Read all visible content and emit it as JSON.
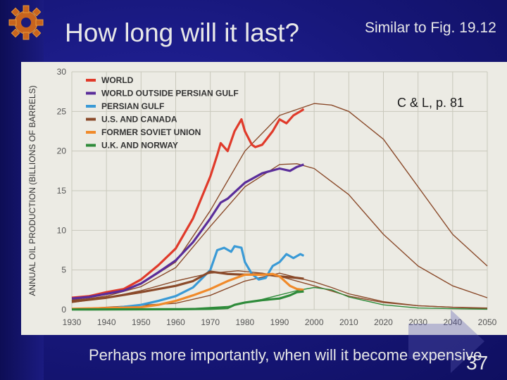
{
  "slide": {
    "title": "How long will it last?",
    "subtitle": "Similar to Fig. 19.12",
    "bottom_text": "Perhaps more importantly, when will it become expensive",
    "page_number": "37"
  },
  "chart_data": {
    "type": "line",
    "ylabel": "ANNUAL OIL PRODUCTION (BILLIONS OF BARRELS)",
    "xlim": [
      1930,
      2050
    ],
    "ylim": [
      0,
      30
    ],
    "x_ticks": [
      "1930",
      "1940",
      "1950",
      "1960",
      "1970",
      "1980",
      "1990",
      "2000",
      "2010",
      "2020",
      "2030",
      "2040",
      "2050"
    ],
    "y_ticks": [
      "0",
      "5",
      "10",
      "15",
      "20",
      "25",
      "30"
    ],
    "annotation": "C & L, p. 81",
    "grid": true,
    "legend_position": "top-left",
    "series": [
      {
        "name": "WORLD",
        "color": "#e03a2a",
        "x": [
          1930,
          1935,
          1940,
          1945,
          1950,
          1955,
          1960,
          1965,
          1970,
          1972,
          1973,
          1975,
          1977,
          1979,
          1980,
          1982,
          1983,
          1985,
          1988,
          1990,
          1992,
          1994,
          1996,
          1997
        ],
        "y": [
          1.5,
          1.7,
          2.2,
          2.6,
          3.8,
          5.6,
          7.7,
          11.5,
          16.8,
          19.5,
          21.0,
          20.0,
          22.5,
          24.0,
          22.5,
          20.8,
          20.5,
          20.8,
          22.5,
          24.0,
          23.5,
          24.5,
          25.0,
          25.3
        ]
      },
      {
        "name": "WORLD OUTSIDE PERSIAN GULF",
        "color": "#5a2d9a",
        "x": [
          1930,
          1935,
          1940,
          1945,
          1950,
          1955,
          1960,
          1965,
          1970,
          1973,
          1975,
          1980,
          1985,
          1990,
          1993,
          1995,
          1997
        ],
        "y": [
          1.4,
          1.6,
          2.0,
          2.4,
          3.3,
          4.7,
          6.2,
          8.5,
          11.5,
          13.5,
          14.0,
          16.0,
          17.2,
          17.8,
          17.5,
          18.0,
          18.3
        ]
      },
      {
        "name": "PERSIAN GULF",
        "color": "#3a9ad6",
        "x": [
          1930,
          1940,
          1950,
          1955,
          1960,
          1965,
          1970,
          1972,
          1974,
          1976,
          1977,
          1979,
          1980,
          1982,
          1984,
          1986,
          1988,
          1990,
          1992,
          1994,
          1996,
          1997
        ],
        "y": [
          0.05,
          0.1,
          0.6,
          1.1,
          1.7,
          2.8,
          5.0,
          7.5,
          7.8,
          7.3,
          8.0,
          7.8,
          6.0,
          4.5,
          3.8,
          4.0,
          5.5,
          6.0,
          7.0,
          6.5,
          7.0,
          6.8
        ]
      },
      {
        "name": "U.S. AND CANADA",
        "color": "#8a4a2a",
        "x": [
          1930,
          1940,
          1950,
          1960,
          1965,
          1970,
          1975,
          1980,
          1985,
          1990,
          1995,
          1997
        ],
        "y": [
          1.0,
          1.5,
          2.2,
          3.0,
          3.6,
          4.8,
          4.5,
          4.4,
          4.5,
          4.2,
          4.0,
          3.9
        ]
      },
      {
        "name": "FORMER SOVIET UNION",
        "color": "#f08a2a",
        "x": [
          1930,
          1940,
          1950,
          1955,
          1960,
          1965,
          1970,
          1975,
          1980,
          1985,
          1988,
          1990,
          1993,
          1995,
          1997
        ],
        "y": [
          0.1,
          0.2,
          0.3,
          0.6,
          1.1,
          1.8,
          2.6,
          3.6,
          4.4,
          4.4,
          4.5,
          4.2,
          3.0,
          2.6,
          2.5
        ]
      },
      {
        "name": "U.K. AND NORWAY",
        "color": "#2e8b3a",
        "x": [
          1930,
          1960,
          1970,
          1975,
          1977,
          1980,
          1985,
          1990,
          1993,
          1995,
          1997
        ],
        "y": [
          0.02,
          0.05,
          0.1,
          0.2,
          0.6,
          0.9,
          1.2,
          1.4,
          1.8,
          2.2,
          2.3
        ]
      }
    ],
    "model_curves": [
      {
        "name": "",
        "color": "#8a4a2a",
        "x": [
          1930,
          1940,
          1950,
          1960,
          1970,
          1980,
          1990,
          2000,
          2005,
          2010,
          2020,
          2030,
          2040,
          2050
        ],
        "y": [
          1.2,
          1.9,
          3.2,
          6.0,
          12.5,
          20.0,
          24.5,
          26.0,
          25.8,
          25.0,
          21.5,
          15.5,
          9.5,
          5.5
        ]
      },
      {
        "name": "",
        "color": "#8a4a2a",
        "x": [
          1930,
          1940,
          1950,
          1960,
          1970,
          1980,
          1990,
          1995,
          2000,
          2010,
          2020,
          2030,
          2040,
          2050
        ],
        "y": [
          1.1,
          1.7,
          2.9,
          5.3,
          10.5,
          15.5,
          18.3,
          18.4,
          17.8,
          14.5,
          9.5,
          5.5,
          3.0,
          1.5
        ]
      },
      {
        "name": "",
        "color": "#8a4a2a",
        "x": [
          1930,
          1940,
          1950,
          1960,
          1970,
          1978,
          1985,
          1990,
          2000,
          2010,
          2020,
          2030,
          2040,
          2050
        ],
        "y": [
          0.9,
          1.5,
          2.4,
          3.6,
          4.6,
          4.9,
          4.6,
          4.2,
          3.0,
          1.7,
          0.9,
          0.5,
          0.3,
          0.2
        ]
      },
      {
        "name": "",
        "color": "#8a4a2a",
        "x": [
          1930,
          1960,
          1970,
          1980,
          1990,
          2000,
          2005,
          2010,
          2020,
          2030,
          2050
        ],
        "y": [
          0.05,
          0.8,
          1.8,
          3.6,
          4.6,
          3.5,
          2.8,
          2.0,
          1.0,
          0.5,
          0.1
        ]
      },
      {
        "name": "",
        "color": "#2e8b3a",
        "x": [
          1960,
          1975,
          1985,
          1995,
          2000,
          2005,
          2010,
          2020,
          2030,
          2050
        ],
        "y": [
          0.02,
          0.4,
          1.3,
          2.4,
          2.8,
          2.5,
          1.6,
          0.6,
          0.2,
          0.05
        ]
      }
    ]
  }
}
